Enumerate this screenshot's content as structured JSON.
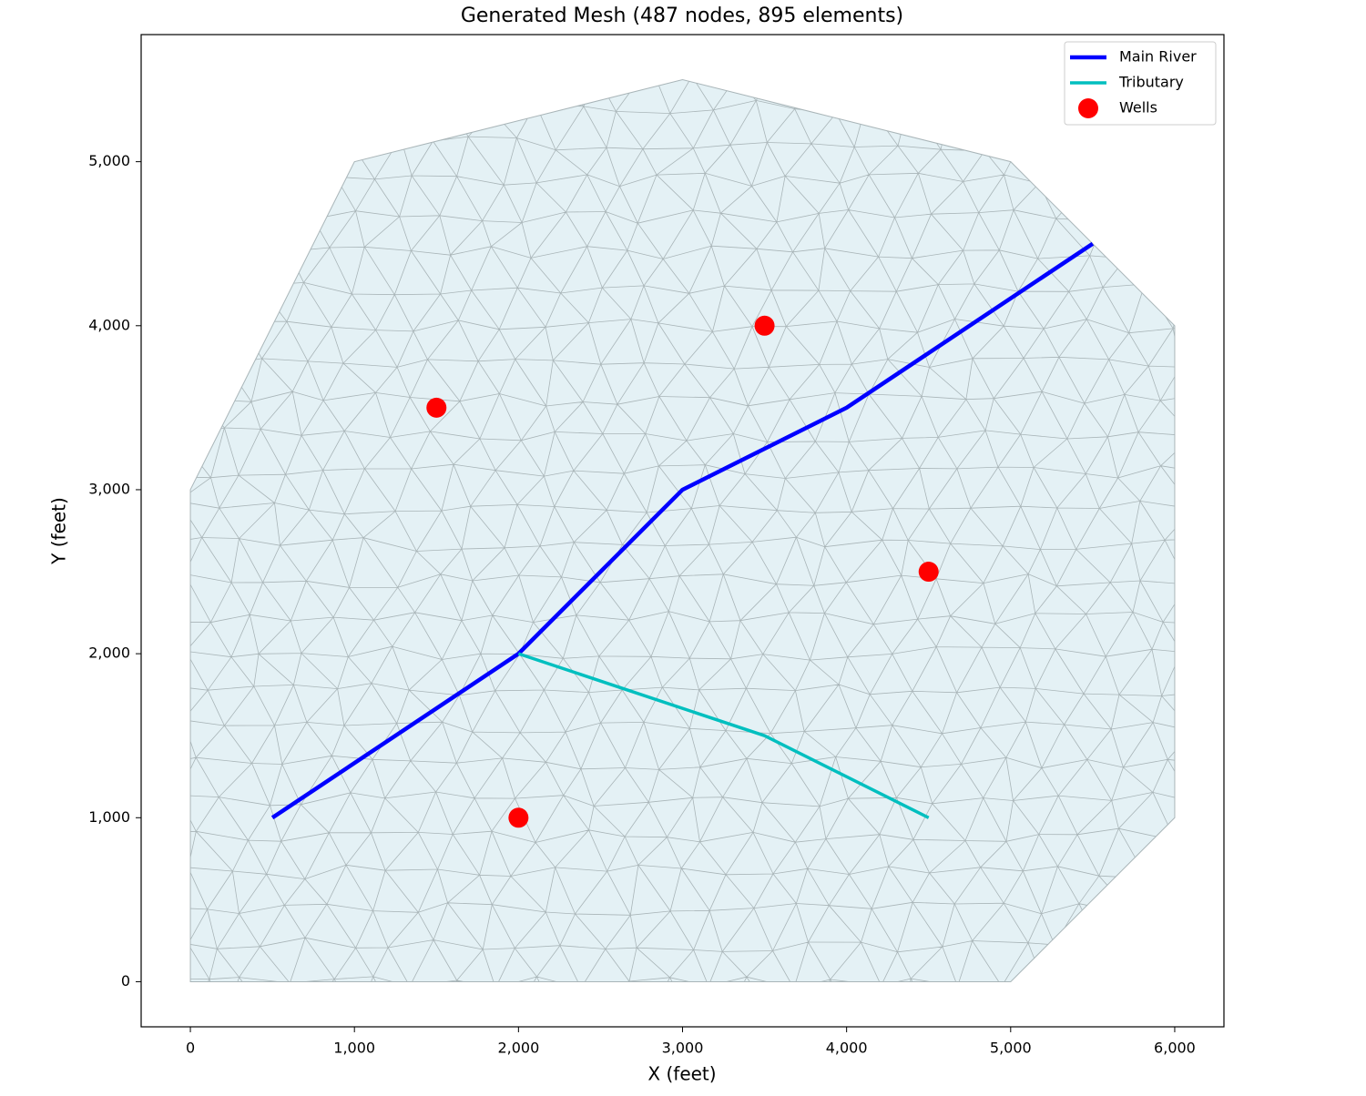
{
  "chart_data": {
    "type": "mesh",
    "title": "Generated Mesh (487 nodes, 895 elements)",
    "x_label": "X (feet)",
    "y_label": "Y (feet)",
    "xlim": [
      -300,
      6300
    ],
    "ylim": [
      -275,
      5775
    ],
    "xticks": [
      0,
      {
        "value": 1000,
        "label": "1,000"
      },
      {
        "value": 2000,
        "label": "2,000"
      },
      {
        "value": 3000,
        "label": "3,000"
      },
      {
        "value": 4000,
        "label": "4,000"
      },
      {
        "value": 5000,
        "label": "5,000"
      },
      {
        "value": 6000,
        "label": "6,000"
      }
    ],
    "yticks": [
      0,
      {
        "value": 1000,
        "label": "1,000"
      },
      {
        "value": 2000,
        "label": "2,000"
      },
      {
        "value": 3000,
        "label": "3,000"
      },
      {
        "value": 4000,
        "label": "4,000"
      },
      {
        "value": 5000,
        "label": "5,000"
      }
    ],
    "domain": {
      "color": "#e4f1f5",
      "edge_color": "#a9b5b8",
      "x": [
        0,
        5000,
        6000,
        6000,
        5000,
        3000,
        1000,
        0
      ],
      "y": [
        0,
        0,
        1000,
        4000,
        5000,
        5500,
        5000,
        3000
      ]
    },
    "legend": "upper right",
    "series": [
      {
        "name": "Main River",
        "mark": "line",
        "color": "#0000ff",
        "x": [
          500,
          2000,
          3000,
          4000,
          5500
        ],
        "values": [
          1000,
          2000,
          3000,
          3500,
          4500
        ]
      },
      {
        "name": "Tributary",
        "mark": "line",
        "color": "#00bfbf",
        "x": [
          2000,
          3500,
          4500
        ],
        "values": [
          2000,
          1500,
          1000
        ]
      },
      {
        "name": "Wells",
        "mark": "marker",
        "color": "#ff0000",
        "x": [
          1500,
          3500,
          4500,
          2000
        ],
        "values": [
          3500,
          4000,
          2500,
          1000
        ]
      }
    ]
  }
}
